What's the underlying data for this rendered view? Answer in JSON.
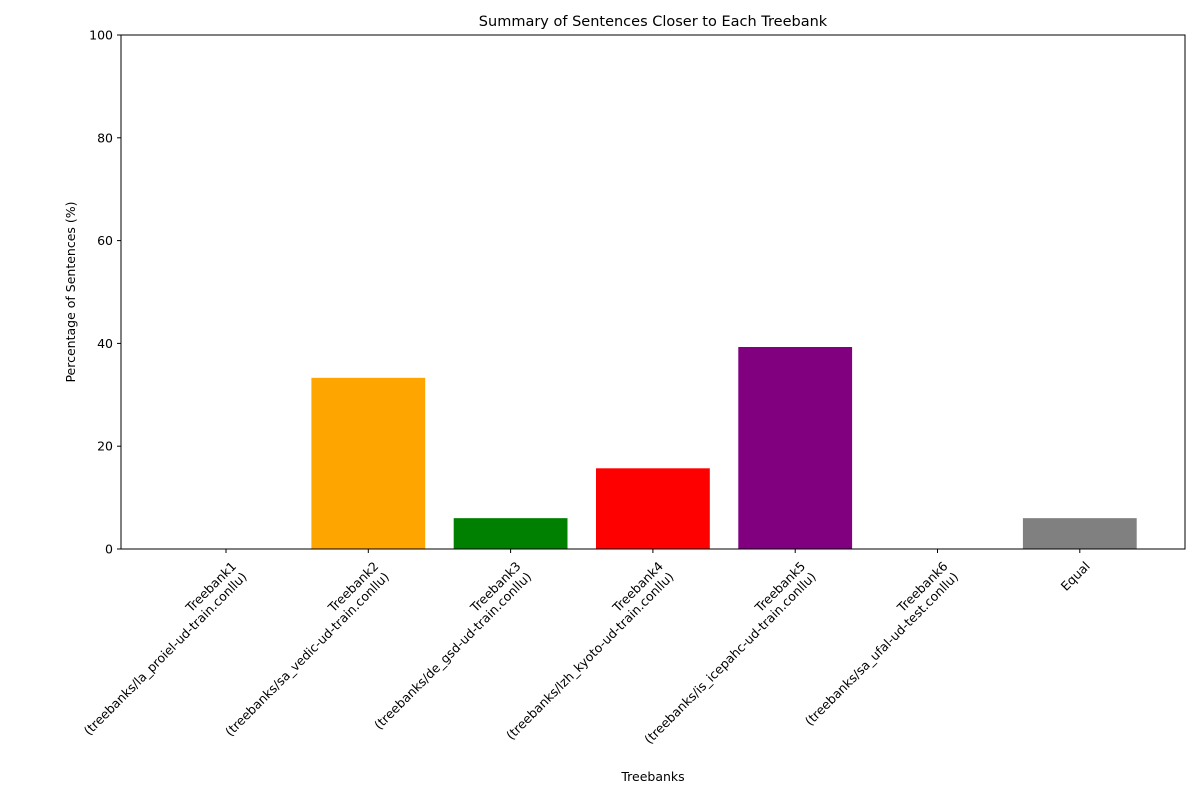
{
  "chart_data": {
    "type": "bar",
    "title": "Summary of Sentences Closer to Each Treebank",
    "xlabel": "Treebanks",
    "ylabel": "Percentage of Sentences (%)",
    "ylim": [
      0,
      100
    ],
    "yticks": [
      "0",
      "20",
      "40",
      "60",
      "80",
      "100"
    ],
    "grid": false,
    "categories": [
      {
        "line1": "Treebank1",
        "line2": "(treebanks/la_proiel-ud-train.conllu)"
      },
      {
        "line1": "Treebank2",
        "line2": "(treebanks/sa_vedic-ud-train.conllu)"
      },
      {
        "line1": "Treebank3",
        "line2": "(treebanks/de_gsd-ud-train.conllu)"
      },
      {
        "line1": "Treebank4",
        "line2": "(treebanks/lzh_kyoto-ud-train.conllu)"
      },
      {
        "line1": "Treebank5",
        "line2": "(treebanks/is_icepahc-ud-train.conllu)"
      },
      {
        "line1": "Treebank6",
        "line2": "(treebanks/sa_ufal-ud-test.conllu)"
      },
      {
        "line1": "Equal",
        "line2": ""
      }
    ],
    "values": [
      0,
      33.3,
      6.0,
      15.7,
      39.3,
      0,
      6.0
    ],
    "colors": [
      "#1f77b4",
      "#ffa500",
      "#008000",
      "#ff0000",
      "#800080",
      "#00bfff",
      "#808080"
    ]
  }
}
